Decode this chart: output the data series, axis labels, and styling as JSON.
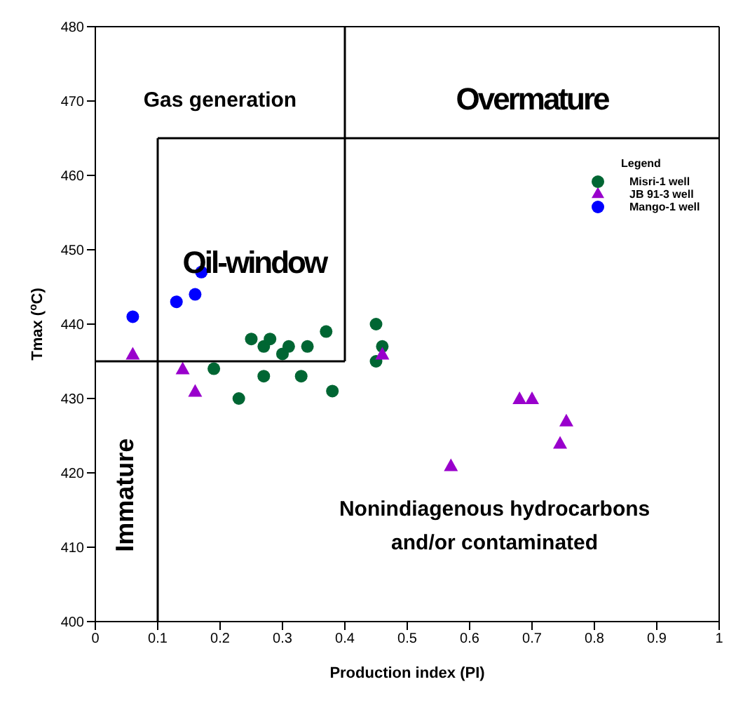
{
  "chart_data": {
    "type": "scatter",
    "xlabel": "Production index  (PI)",
    "ylabel": "Tmax ($^{o}$C)",
    "legend_title": "Legend",
    "legend": "top right",
    "xlim": [
      0,
      1
    ],
    "xticks": [
      0,
      0.1,
      0.2,
      0.3,
      0.4,
      0.5,
      0.6,
      0.7,
      0.8,
      0.9,
      1
    ],
    "ylim": [
      400,
      480
    ],
    "yticks": [
      400,
      410,
      420,
      430,
      440,
      450,
      460,
      470,
      480
    ],
    "series": [
      {
        "name": "Misri-1 well",
        "color": "#006633",
        "marker": "circle",
        "x": [
          0.19,
          0.23,
          0.25,
          0.27,
          0.28,
          0.27,
          0.3,
          0.31,
          0.33,
          0.34,
          0.37,
          0.38,
          0.45,
          0.46,
          0.45
        ],
        "values": [
          434,
          430,
          438,
          437,
          438,
          433,
          436,
          437,
          433,
          437,
          439,
          431,
          440,
          437,
          435
        ]
      },
      {
        "name": "JB 91-3 well",
        "color": "#9900cc",
        "marker": "triangle",
        "x": [
          0.06,
          0.14,
          0.16,
          0.46,
          0.57,
          0.68,
          0.7,
          0.745,
          0.755
        ],
        "values": [
          436,
          434,
          431,
          436,
          421,
          430,
          430,
          424,
          427
        ]
      },
      {
        "name": "Mango-1 well",
        "color": "#0000ff",
        "marker": "circle",
        "x": [
          0.06,
          0.13,
          0.16,
          0.17
        ],
        "values": [
          441,
          443,
          444,
          447
        ]
      },
      {
        "type": "line",
        "color": "#000000",
        "x": [
          0.1,
          0.1
        ],
        "values": [
          400,
          465
        ]
      },
      {
        "type": "line",
        "color": "#000000",
        "x": [
          0.1,
          1
        ],
        "values": [
          465,
          465
        ]
      },
      {
        "type": "line",
        "color": "#000000",
        "x": [
          0,
          0.4
        ],
        "values": [
          435,
          435
        ]
      },
      {
        "type": "line",
        "color": "#000000",
        "x": [
          0.4,
          0.4
        ],
        "values": [
          435,
          480
        ]
      }
    ],
    "annotations": [
      "Gas generation",
      "Overmature",
      "Oil-window",
      "Immature",
      "Nonindiagenous hydrocarbons",
      "and/or contaminated"
    ]
  }
}
